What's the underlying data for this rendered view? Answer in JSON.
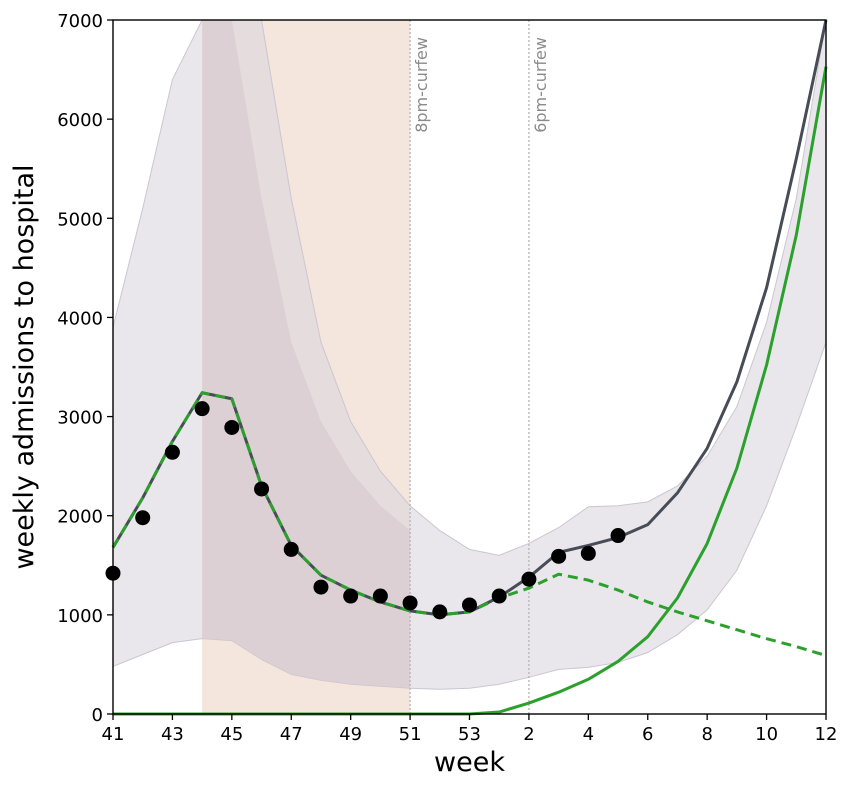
{
  "chart_data": {
    "type": "line",
    "xlabel": "week",
    "ylabel": "weekly admissions to hospital",
    "ylim": [
      0,
      7000
    ],
    "yticks": [
      0,
      1000,
      2000,
      3000,
      4000,
      5000,
      6000,
      7000
    ],
    "xlim": [
      0,
      24
    ],
    "xticks": [
      {
        "pos": 0,
        "label": "41"
      },
      {
        "pos": 2,
        "label": "43"
      },
      {
        "pos": 4,
        "label": "45"
      },
      {
        "pos": 6,
        "label": "47"
      },
      {
        "pos": 8,
        "label": "49"
      },
      {
        "pos": 10,
        "label": "51"
      },
      {
        "pos": 12,
        "label": "53"
      },
      {
        "pos": 14,
        "label": "2"
      },
      {
        "pos": 16,
        "label": "4"
      },
      {
        "pos": 18,
        "label": "6"
      },
      {
        "pos": 20,
        "label": "8"
      },
      {
        "pos": 22,
        "label": "10"
      },
      {
        "pos": 24,
        "label": "12"
      }
    ],
    "shaded_periods": [
      {
        "from": 3,
        "to": 10,
        "color": "#f4e6dd"
      }
    ],
    "annotations": [
      {
        "x": 10,
        "label": "8pm-curfew"
      },
      {
        "x": 14,
        "label": "6pm-curfew"
      }
    ],
    "bands": [
      {
        "name": "outer",
        "color": "#d7d3dc",
        "x": [
          0,
          1,
          2,
          3,
          4,
          5,
          6,
          7,
          8,
          9,
          10,
          11,
          12,
          13,
          14,
          15,
          16,
          17,
          18,
          19,
          20,
          21,
          22,
          23,
          24
        ],
        "lower": [
          480,
          600,
          720,
          760,
          740,
          550,
          400,
          340,
          300,
          280,
          260,
          250,
          260,
          300,
          370,
          450,
          470,
          520,
          620,
          800,
          1050,
          1450,
          2100,
          2900,
          3750
        ],
        "upper": [
          3900,
          5100,
          6400,
          7000,
          7000,
          7000,
          5200,
          3750,
          2950,
          2450,
          2100,
          1850,
          1660,
          1600,
          1720,
          1880,
          2090,
          2100,
          2140,
          2300,
          2600,
          3100,
          3950,
          5200,
          7000
        ]
      },
      {
        "name": "inner",
        "color": "#d9ccd0",
        "x": [
          3,
          4,
          5,
          6,
          7,
          8,
          9,
          10
        ],
        "lower": [
          760,
          740,
          550,
          400,
          340,
          300,
          280,
          260
        ],
        "upper": [
          7000,
          7000,
          5200,
          3750,
          2950,
          2450,
          2100,
          1850
        ]
      }
    ],
    "series": [
      {
        "style": "solid",
        "color": "#474c56",
        "x": [
          0,
          1,
          2,
          3,
          4,
          5,
          6,
          7,
          8,
          9,
          10,
          11,
          12,
          13,
          14,
          15,
          16,
          17,
          18,
          19,
          20,
          21,
          22,
          23,
          24
        ],
        "values": [
          1680,
          2180,
          2750,
          3240,
          3180,
          2300,
          1700,
          1400,
          1250,
          1130,
          1040,
          1000,
          1030,
          1180,
          1380,
          1630,
          1700,
          1780,
          1910,
          2230,
          2680,
          3350,
          4300,
          5600,
          7050
        ]
      },
      {
        "style": "dashed",
        "color": "#2ca02c",
        "x": [
          0,
          1,
          2,
          3,
          4,
          5,
          6,
          7,
          8,
          9,
          10,
          11,
          12,
          13,
          14,
          15,
          16,
          17,
          18,
          19,
          20,
          21,
          22,
          23,
          24
        ],
        "values": [
          1680,
          2180,
          2750,
          3240,
          3180,
          2300,
          1700,
          1400,
          1250,
          1130,
          1040,
          1000,
          1030,
          1170,
          1270,
          1410,
          1350,
          1250,
          1130,
          1030,
          940,
          850,
          760,
          680,
          590
        ]
      },
      {
        "style": "solid",
        "color": "#2ca02c",
        "x": [
          0,
          1,
          2,
          3,
          4,
          5,
          6,
          7,
          8,
          9,
          10,
          11,
          12,
          13,
          14,
          15,
          16,
          17,
          18,
          19,
          20,
          21,
          22,
          23,
          24
        ],
        "values": [
          1680,
          2180,
          2750,
          3240,
          3180,
          2300,
          1700,
          1400,
          1250,
          1130,
          1040,
          1000,
          1030,
          1180,
          1380,
          1630,
          1700,
          1780,
          1910,
          2230,
          2680,
          3350,
          4300,
          5600,
          7050
        ],
        "green_only": [
          0,
          0,
          0,
          0,
          0,
          0,
          0,
          0,
          0,
          0,
          0,
          0,
          0,
          20,
          110,
          220,
          350,
          530,
          780,
          1170,
          1720,
          2480,
          3520,
          4830,
          6530
        ]
      }
    ],
    "points": {
      "color": "#000000",
      "x": [
        0,
        1,
        2,
        3,
        4,
        5,
        6,
        7,
        8,
        9,
        10,
        11,
        12,
        13,
        14,
        15,
        16,
        17
      ],
      "values": [
        1420,
        1980,
        2640,
        3080,
        2890,
        2270,
        1660,
        1280,
        1190,
        1190,
        1120,
        1030,
        1100,
        1190,
        1360,
        1590,
        1620,
        1800
      ]
    }
  }
}
